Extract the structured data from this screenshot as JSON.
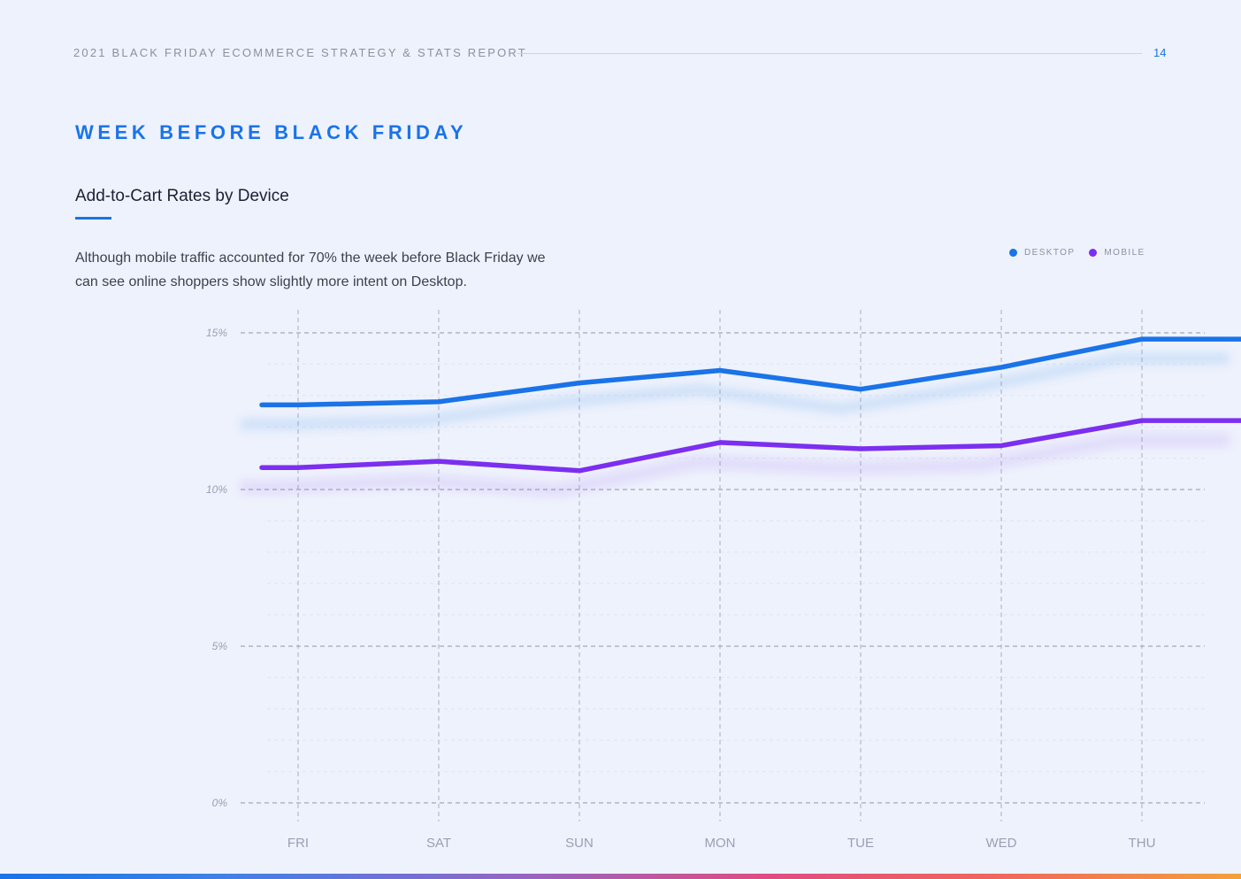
{
  "header": {
    "title": "2021 BLACK FRIDAY ECOMMERCE STRATEGY & STATS REPORT",
    "page_number": "14"
  },
  "section_title": "WEEK BEFORE BLACK FRIDAY",
  "chart_heading": "Add-to-Cart Rates by Device",
  "description": "Although mobile traffic accounted for 70% the week before Black Friday we can see online shoppers show slightly more intent on Desktop.",
  "legend": [
    {
      "label": "DESKTOP",
      "color": "#1a73e8"
    },
    {
      "label": "MOBILE",
      "color": "#7b2ff0"
    }
  ],
  "colors": {
    "accent": "#1a73e8",
    "desktop": "#1a73e8",
    "mobile": "#7b2ff0"
  },
  "chart_data": {
    "type": "line",
    "title": "Add-to-Cart Rates by Device",
    "xlabel": "",
    "ylabel": "",
    "categories": [
      "FRI",
      "SAT",
      "SUN",
      "MON",
      "TUE",
      "WED",
      "THU"
    ],
    "y_ticks": [
      "0%",
      "5%",
      "10%",
      "15%"
    ],
    "y_tick_values": [
      0,
      5,
      10,
      15
    ],
    "ylim": [
      0,
      15.8
    ],
    "grid": true,
    "legend_position": "top-right",
    "series": [
      {
        "name": "DESKTOP",
        "values": [
          12.7,
          12.8,
          13.4,
          13.8,
          13.2,
          13.9,
          14.8
        ]
      },
      {
        "name": "MOBILE",
        "values": [
          10.7,
          10.9,
          10.6,
          11.5,
          11.3,
          11.4,
          12.2
        ]
      }
    ]
  }
}
